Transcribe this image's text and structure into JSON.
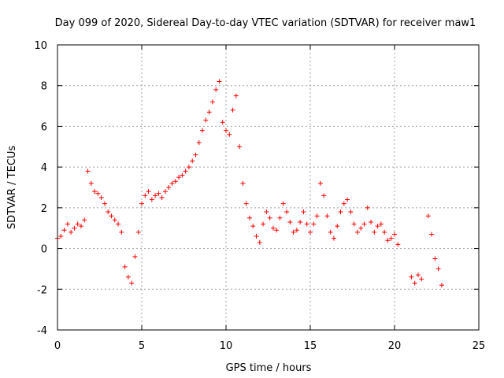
{
  "chart_data": {
    "type": "scatter",
    "title": "Day 099 of 2020, Sidereal Day-to-day VTEC variation (SDTVAR) for receiver maw1",
    "xlabel": "GPS time / hours",
    "ylabel": "SDTVAR / TECUs",
    "xlim": [
      0,
      25
    ],
    "ylim": [
      -4,
      10
    ],
    "xticks": [
      "0",
      "5",
      "10",
      "15",
      "20",
      "25"
    ],
    "yticks": [
      "-4",
      "-2",
      "0",
      "2",
      "4",
      "6",
      "8",
      "10"
    ],
    "grid": true,
    "marker": "+",
    "series": [
      {
        "name": "SDTVAR",
        "color": "#ff0000",
        "x": [
          0.0,
          0.2,
          0.4,
          0.6,
          0.8,
          1.0,
          1.2,
          1.4,
          1.6,
          1.8,
          2.0,
          2.2,
          2.4,
          2.6,
          2.8,
          3.0,
          3.2,
          3.4,
          3.6,
          3.8,
          4.0,
          4.2,
          4.4,
          4.6,
          4.8,
          5.0,
          5.2,
          5.4,
          5.6,
          5.8,
          6.0,
          6.2,
          6.4,
          6.6,
          6.8,
          7.0,
          7.2,
          7.4,
          7.6,
          7.8,
          8.0,
          8.2,
          8.4,
          8.6,
          8.8,
          9.0,
          9.2,
          9.4,
          9.6,
          9.8,
          10.0,
          10.2,
          10.4,
          10.6,
          10.8,
          11.0,
          11.2,
          11.4,
          11.6,
          11.8,
          12.0,
          12.2,
          12.4,
          12.6,
          12.8,
          13.0,
          13.2,
          13.4,
          13.6,
          13.8,
          14.0,
          14.2,
          14.4,
          14.6,
          14.8,
          15.0,
          15.2,
          15.4,
          15.6,
          15.8,
          16.0,
          16.2,
          16.4,
          16.6,
          16.8,
          17.0,
          17.2,
          17.4,
          17.6,
          17.8,
          18.0,
          18.2,
          18.4,
          18.6,
          18.8,
          19.0,
          19.2,
          19.4,
          19.6,
          19.8,
          20.0,
          20.2,
          21.0,
          21.2,
          21.4,
          21.6,
          22.0,
          22.2,
          22.4,
          22.6,
          22.8
        ],
        "y": [
          0.5,
          0.6,
          0.9,
          1.2,
          0.8,
          1.0,
          1.2,
          1.1,
          1.4,
          3.8,
          3.2,
          2.8,
          2.7,
          2.5,
          2.2,
          1.8,
          1.6,
          1.4,
          1.2,
          0.8,
          -0.9,
          -1.4,
          -1.7,
          -0.4,
          0.8,
          2.2,
          2.6,
          2.8,
          2.4,
          2.6,
          2.7,
          2.5,
          2.8,
          3.0,
          3.2,
          3.3,
          3.5,
          3.6,
          3.8,
          4.0,
          4.3,
          4.6,
          5.2,
          5.8,
          6.3,
          6.7,
          7.2,
          7.8,
          8.2,
          6.2,
          5.8,
          5.6,
          6.8,
          7.5,
          5.0,
          3.2,
          2.2,
          1.5,
          1.1,
          0.6,
          0.3,
          1.2,
          1.8,
          1.5,
          1.0,
          0.9,
          1.5,
          2.2,
          1.8,
          1.3,
          0.8,
          0.9,
          1.3,
          1.8,
          1.2,
          0.8,
          1.2,
          1.6,
          3.2,
          2.6,
          1.6,
          0.8,
          0.5,
          1.1,
          1.8,
          2.2,
          2.4,
          1.8,
          1.2,
          0.8,
          1.0,
          1.2,
          2.0,
          1.3,
          0.8,
          1.1,
          1.2,
          0.8,
          0.4,
          0.5,
          0.7,
          0.2,
          -1.4,
          -1.7,
          -1.3,
          -1.5,
          1.6,
          0.7,
          -0.5,
          -1.0,
          -1.8
        ]
      }
    ]
  }
}
